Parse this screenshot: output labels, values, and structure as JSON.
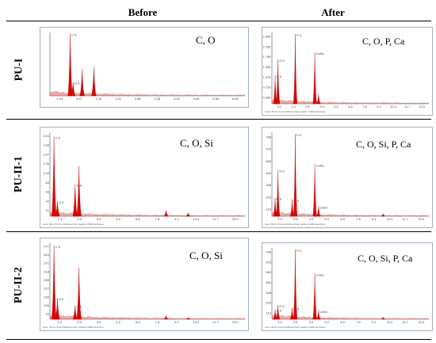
{
  "headers": {
    "before": "Before",
    "after": "After"
  },
  "rows": [
    {
      "label": "PU-I",
      "before": {
        "elements": "C, O",
        "footer": "",
        "y_ticks": [],
        "x_ticks": [
          "1.00",
          "0.67",
          "1.34",
          "2.01",
          "2.68",
          "3.35",
          "4.02",
          "4.69",
          "5.36",
          "6.03"
        ],
        "peaks": [
          {
            "x": 1.4,
            "h": 0.98,
            "label": "C K"
          },
          {
            "x": 1.6,
            "h": 0.22,
            "label": "O K"
          },
          {
            "x": 2.23,
            "h": 0.42,
            "label": ""
          },
          {
            "x": 3.04,
            "h": 0.46,
            "label": ""
          }
        ]
      },
      "after": {
        "elements": "C, O, P, Ca",
        "footer": "Lsec: 40.0 0 Cnts  0.000 keV Det: Apollo X-SDD Det  Reso",
        "y_ticks": [
          "2.50K",
          "2.15K",
          "1.79K",
          "1.43K",
          "1.07K",
          "0.72K",
          "0.36K"
        ],
        "x_ticks": [
          "1.0",
          "1.3",
          "2.6",
          "3.9",
          "5.2",
          "6.5",
          "7.8",
          "9.1",
          "10.4",
          "11.7",
          "13.0"
        ],
        "peaks": [
          {
            "x": 0.28,
            "h": 0.4,
            "label": "C K"
          },
          {
            "x": 0.52,
            "h": 0.62,
            "label": "O K"
          },
          {
            "x": 2.01,
            "h": 0.98,
            "label": "P K"
          },
          {
            "x": 3.69,
            "h": 0.72,
            "label": "CaKa"
          },
          {
            "x": 4.01,
            "h": 0.14,
            "label": ""
          }
        ]
      }
    },
    {
      "label": "PU-II-1",
      "before": {
        "elements": "C, O, Si",
        "footer": "Lsec: 50.0 0 Cnts  0.000 keV Det: Apollo X-SDD Det  Reso",
        "y_ticks": [
          "2.04",
          "1.83",
          "1.47",
          "1.26",
          "1.05",
          "84",
          "63",
          "42",
          "21"
        ],
        "x_ticks": [
          "1.3",
          "2.6",
          "3.9",
          "5.2",
          "6.5",
          "7.8",
          "9.1",
          "10.4",
          "11.7",
          "13.0"
        ],
        "peaks": [
          {
            "x": 0.28,
            "h": 0.95,
            "label": "C K"
          },
          {
            "x": 0.52,
            "h": 0.18,
            "label": "O K"
          },
          {
            "x": 1.74,
            "h": 0.38,
            "label": "Si K"
          },
          {
            "x": 2.01,
            "h": 0.6,
            "label": ""
          },
          {
            "x": 8.04,
            "h": 0.07,
            "label": ""
          },
          {
            "x": 9.57,
            "h": 0.04,
            "label": ""
          }
        ]
      },
      "after": {
        "elements": "C, O, Si, P, Ca",
        "footer": "Lsec: 50.0 0 Cnts  0.000 keV Det: Apollo X-SDD Det  Reso",
        "y_ticks": [
          "788",
          "675",
          "563",
          "450",
          "338",
          "225",
          "113"
        ],
        "x_ticks": [
          "1.3",
          "2.6",
          "3.9",
          "5.2",
          "6.5",
          "7.8",
          "9.1",
          "10.4",
          "11.7",
          "13.0"
        ],
        "peaks": [
          {
            "x": 0.28,
            "h": 0.22,
            "label": "C K"
          },
          {
            "x": 0.52,
            "h": 0.55,
            "label": "O K"
          },
          {
            "x": 1.74,
            "h": 0.2,
            "label": "Si K"
          },
          {
            "x": 2.01,
            "h": 0.98,
            "label": "P K"
          },
          {
            "x": 3.69,
            "h": 0.62,
            "label": "CaKa"
          },
          {
            "x": 4.01,
            "h": 0.12,
            "label": "CaKb"
          },
          {
            "x": 9.57,
            "h": 0.03,
            "label": ""
          }
        ]
      }
    },
    {
      "label": "PU-II-2",
      "before": {
        "elements": "C, O, Si",
        "footer": "Lsec: 40.0 0 Cnts  0.000 keV Det: Apollo X-SDD Det  Reso",
        "y_ticks": [
          "477",
          "424",
          "371",
          "318",
          "265",
          "212",
          "159",
          "106",
          "53"
        ],
        "x_ticks": [
          "1.3",
          "2.6",
          "3.9",
          "5.2",
          "6.5",
          "7.8",
          "9.1",
          "10.4",
          "11.7",
          "13.0"
        ],
        "peaks": [
          {
            "x": 0.28,
            "h": 0.97,
            "label": "C K"
          },
          {
            "x": 0.52,
            "h": 0.28,
            "label": "O K"
          },
          {
            "x": 1.74,
            "h": 0.18,
            "label": "Si K"
          },
          {
            "x": 2.01,
            "h": 0.68,
            "label": ""
          },
          {
            "x": 8.04,
            "h": 0.05,
            "label": ""
          },
          {
            "x": 9.57,
            "h": 0.02,
            "label": ""
          }
        ]
      },
      "after": {
        "elements": "C, O, Si, P, Ca",
        "footer": "Lsec: 40.0 0 Cnts  0.000 keV Det: Apollo X-SDD Det  Reso",
        "y_ticks": [
          "788",
          "675",
          "563",
          "450",
          "338",
          "225",
          "113"
        ],
        "x_ticks": [
          "1.3",
          "2.6",
          "3.9",
          "5.2",
          "6.5",
          "7.8",
          "9.1",
          "10.4",
          "11.7",
          "13.0"
        ],
        "peaks": [
          {
            "x": 0.28,
            "h": 0.14,
            "label": "C K"
          },
          {
            "x": 0.52,
            "h": 0.2,
            "label": "O K"
          },
          {
            "x": 1.74,
            "h": 0.16,
            "label": "Si K"
          },
          {
            "x": 2.01,
            "h": 0.98,
            "label": "P K"
          },
          {
            "x": 3.69,
            "h": 0.64,
            "label": "CaKa"
          },
          {
            "x": 4.01,
            "h": 0.12,
            "label": "CaKb"
          },
          {
            "x": 9.57,
            "h": 0.03,
            "label": ""
          }
        ]
      }
    }
  ],
  "chart_data": {
    "type": "line",
    "title": "",
    "series": [
      {
        "name": "PU-I Before",
        "x": [
          1.4,
          1.6,
          2.23,
          3.04
        ],
        "values": [
          0.98,
          0.22,
          0.42,
          0.46
        ]
      },
      {
        "name": "PU-I After",
        "x": [
          0.28,
          0.52,
          2.01,
          3.69,
          4.01
        ],
        "values": [
          0.4,
          0.62,
          0.98,
          0.72,
          0.14
        ]
      },
      {
        "name": "PU-II-1 Before",
        "x": [
          0.28,
          0.52,
          1.74,
          2.01,
          8.04,
          9.57
        ],
        "values": [
          0.95,
          0.18,
          0.38,
          0.6,
          0.07,
          0.04
        ]
      },
      {
        "name": "PU-II-1 After",
        "x": [
          0.28,
          0.52,
          1.74,
          2.01,
          3.69,
          4.01,
          9.57
        ],
        "values": [
          0.22,
          0.55,
          0.2,
          0.98,
          0.62,
          0.12,
          0.03
        ]
      },
      {
        "name": "PU-II-2 Before",
        "x": [
          0.28,
          0.52,
          1.74,
          2.01,
          8.04,
          9.57
        ],
        "values": [
          0.97,
          0.28,
          0.18,
          0.68,
          0.05,
          0.02
        ]
      },
      {
        "name": "PU-II-2 After",
        "x": [
          0.28,
          0.52,
          1.74,
          2.01,
          3.69,
          4.01,
          9.57
        ],
        "values": [
          0.14,
          0.2,
          0.16,
          0.98,
          0.64,
          0.12,
          0.03
        ]
      }
    ],
    "xlabel": "",
    "ylabel": "",
    "grid": false
  }
}
